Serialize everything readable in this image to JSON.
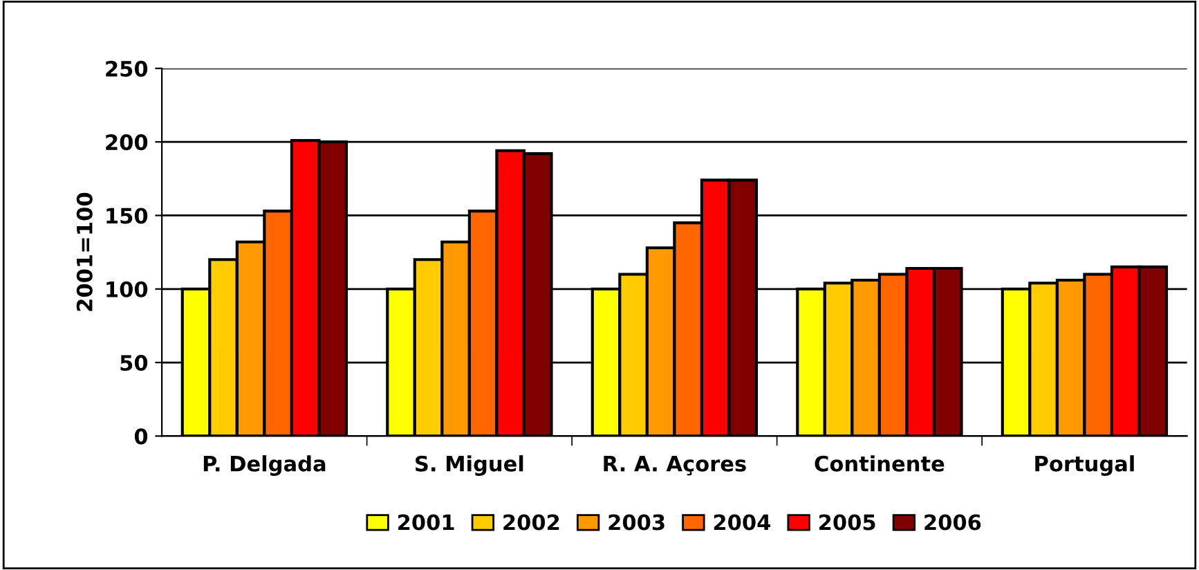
{
  "chart_data": {
    "type": "bar",
    "ylabel": "2001=100",
    "categories": [
      "P. Delgada",
      "S. Miguel",
      "R. A. Açores",
      "Continente",
      "Portugal"
    ],
    "series": [
      {
        "name": "2001",
        "color": "#ffff00",
        "values": [
          100,
          100,
          100,
          100,
          100
        ]
      },
      {
        "name": "2002",
        "color": "#ffcc00",
        "values": [
          120,
          120,
          110,
          104,
          104
        ]
      },
      {
        "name": "2003",
        "color": "#ff9900",
        "values": [
          132,
          132,
          128,
          106,
          106
        ]
      },
      {
        "name": "2004",
        "color": "#ff6600",
        "values": [
          153,
          153,
          145,
          110,
          110
        ]
      },
      {
        "name": "2005",
        "color": "#ff0000",
        "values": [
          201,
          194,
          174,
          114,
          115
        ]
      },
      {
        "name": "2006",
        "color": "#800000",
        "values": [
          200,
          192,
          174,
          114,
          115
        ]
      }
    ],
    "ylim": [
      0,
      250
    ],
    "yticks": [
      0,
      50,
      100,
      150,
      200,
      250
    ],
    "grid": "y",
    "legend": "bottom"
  }
}
